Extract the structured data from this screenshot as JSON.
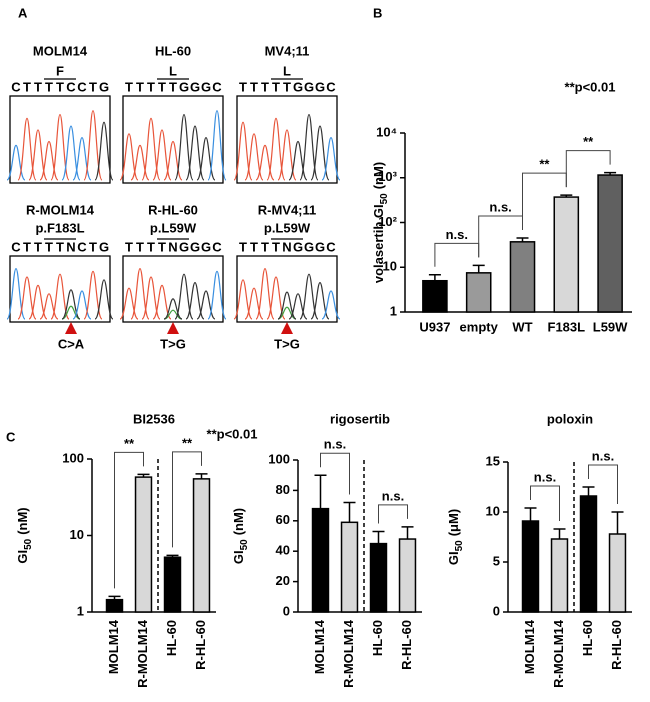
{
  "panel_labels": [
    "A",
    "B",
    "C"
  ],
  "panel_a": {
    "parental": [
      {
        "name": "MOLM14",
        "codon": "F",
        "sequence": [
          "C",
          "T",
          "T",
          "T",
          "T",
          "C",
          "C",
          "T",
          "G"
        ]
      },
      {
        "name": "HL-60",
        "codon": "L",
        "sequence": [
          "T",
          "T",
          "T",
          "T",
          "T",
          "G",
          "G",
          "G",
          "C"
        ]
      },
      {
        "name": "MV4;11",
        "codon": "L",
        "sequence": [
          "T",
          "T",
          "T",
          "T",
          "T",
          "G",
          "G",
          "G",
          "C"
        ]
      }
    ],
    "resistant": [
      {
        "name": "R-MOLM14",
        "mutation": "p.F183L",
        "sequence": [
          "C",
          "T",
          "T",
          "T",
          "T",
          "N",
          "C",
          "T",
          "G"
        ],
        "change": "C>A"
      },
      {
        "name": "R-HL-60",
        "mutation": "p.L59W",
        "sequence": [
          "T",
          "T",
          "T",
          "T",
          "N",
          "G",
          "G",
          "G",
          "C"
        ],
        "change": "T>G"
      },
      {
        "name": "R-MV4;11",
        "mutation": "p.L59W",
        "sequence": [
          "T",
          "T",
          "T",
          "T",
          "N",
          "G",
          "G",
          "G",
          "C"
        ],
        "change": "T>G"
      }
    ]
  },
  "chart_data": [
    {
      "type": "bar",
      "ylabel": [
        "volasertib GI",
        "50",
        "(nM)"
      ],
      "log": true,
      "categories": [
        "U937",
        "empty",
        "WT",
        "F183L",
        "L59W"
      ],
      "values": [
        5,
        7.5,
        37,
        370,
        1150
      ],
      "errors": [
        1.8,
        3.5,
        8,
        40,
        150
      ],
      "colors": [
        "#000000",
        "#9a9a9a",
        "#808080",
        "#d8d8d8",
        "#606060"
      ],
      "ylim": [
        1,
        10000
      ],
      "yticks": [
        1,
        10,
        {
          "value": 100,
          "label": "10²"
        },
        {
          "value": 1000,
          "label": "10³"
        },
        {
          "value": 10000,
          "label": "10⁴"
        }
      ],
      "comparisons": [
        {
          "pair": [
            0,
            1
          ],
          "label": "n.s."
        },
        {
          "pair": [
            1,
            2
          ],
          "label": "n.s."
        },
        {
          "pair": [
            2,
            3
          ],
          "label": "**"
        },
        {
          "pair": [
            3,
            4
          ],
          "label": "**"
        }
      ],
      "annotation": "**p<0.01"
    },
    {
      "type": "bar",
      "title": "BI2536",
      "ylabel": [
        "GI",
        "50",
        "(nM)"
      ],
      "log": true,
      "categories": [
        "MOLM14",
        "R-MOLM14",
        "HL-60",
        "R-HL-60"
      ],
      "values": [
        1.45,
        58,
        5.2,
        55
      ],
      "errors": [
        0.15,
        5,
        0.3,
        9
      ],
      "colors": [
        "#000000",
        "#d8d8d8",
        "#000000",
        "#d8d8d8"
      ],
      "ylim": [
        1,
        100
      ],
      "yticks": [
        1,
        10,
        100
      ],
      "divider": true,
      "comparisons": [
        {
          "pair": [
            0,
            1
          ],
          "label": "**"
        },
        {
          "pair": [
            2,
            3
          ],
          "label": "**"
        }
      ],
      "annotation": "**p<0.01"
    },
    {
      "type": "bar",
      "title": "rigosertib",
      "ylabel": [
        "GI",
        "50",
        "(nM)"
      ],
      "log": false,
      "categories": [
        "MOLM14",
        "R-MOLM14",
        "HL-60",
        "R-HL-60"
      ],
      "values": [
        68,
        59,
        45,
        48
      ],
      "errors": [
        22,
        13,
        8,
        8
      ],
      "colors": [
        "#000000",
        "#d8d8d8",
        "#000000",
        "#d8d8d8"
      ],
      "ylim": [
        0,
        100
      ],
      "yticks": [
        0,
        20,
        40,
        60,
        80,
        100
      ],
      "divider": true,
      "comparisons": [
        {
          "pair": [
            0,
            1
          ],
          "label": "n.s."
        },
        {
          "pair": [
            2,
            3
          ],
          "label": "n.s."
        }
      ]
    },
    {
      "type": "bar",
      "title": "poloxin",
      "ylabel": [
        "GI",
        "50",
        "(μM)"
      ],
      "log": false,
      "categories": [
        "MOLM14",
        "R-MOLM14",
        "HL-60",
        "R-HL-60"
      ],
      "values": [
        9.1,
        7.3,
        11.6,
        7.8
      ],
      "errors": [
        1.3,
        1.0,
        0.9,
        2.2
      ],
      "colors": [
        "#000000",
        "#d8d8d8",
        "#000000",
        "#d8d8d8"
      ],
      "ylim": [
        0,
        15
      ],
      "yticks": [
        0,
        5,
        10,
        15
      ],
      "divider": true,
      "comparisons": [
        {
          "pair": [
            0,
            1
          ],
          "label": "n.s."
        },
        {
          "pair": [
            2,
            3
          ],
          "label": "n.s."
        }
      ]
    }
  ]
}
